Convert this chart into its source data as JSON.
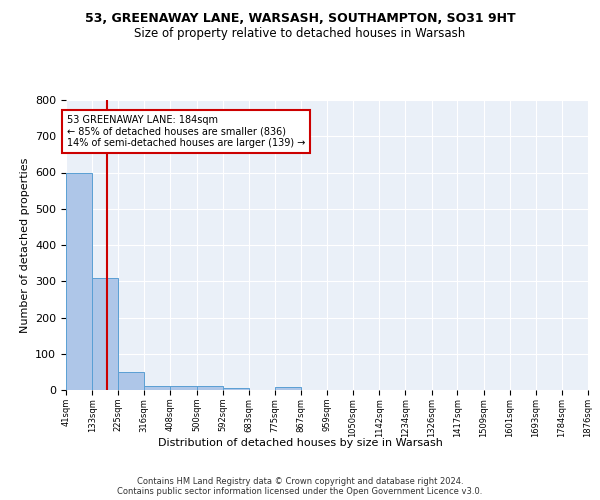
{
  "title1": "53, GREENAWAY LANE, WARSASH, SOUTHAMPTON, SO31 9HT",
  "title2": "Size of property relative to detached houses in Warsash",
  "xlabel": "Distribution of detached houses by size in Warsash",
  "ylabel": "Number of detached properties",
  "bin_edges": [
    41,
    133,
    225,
    316,
    408,
    500,
    592,
    683,
    775,
    867,
    959,
    1050,
    1142,
    1234,
    1326,
    1417,
    1509,
    1601,
    1693,
    1784,
    1876
  ],
  "bar_heights": [
    600,
    310,
    50,
    10,
    12,
    10,
    5,
    0,
    8,
    0,
    0,
    0,
    0,
    0,
    0,
    0,
    0,
    0,
    0,
    0
  ],
  "bar_color": "#aec6e8",
  "bar_edge_color": "#5a9fd4",
  "property_size": 184,
  "vline_color": "#cc0000",
  "annotation_text": "53 GREENAWAY LANE: 184sqm\n← 85% of detached houses are smaller (836)\n14% of semi-detached houses are larger (139) →",
  "annotation_box_color": "white",
  "annotation_box_edge": "#cc0000",
  "bg_color": "#eaf0f8",
  "grid_color": "white",
  "ylim": [
    0,
    800
  ],
  "yticks": [
    0,
    100,
    200,
    300,
    400,
    500,
    600,
    700,
    800
  ],
  "footer1": "Contains HM Land Registry data © Crown copyright and database right 2024.",
  "footer2": "Contains public sector information licensed under the Open Government Licence v3.0."
}
